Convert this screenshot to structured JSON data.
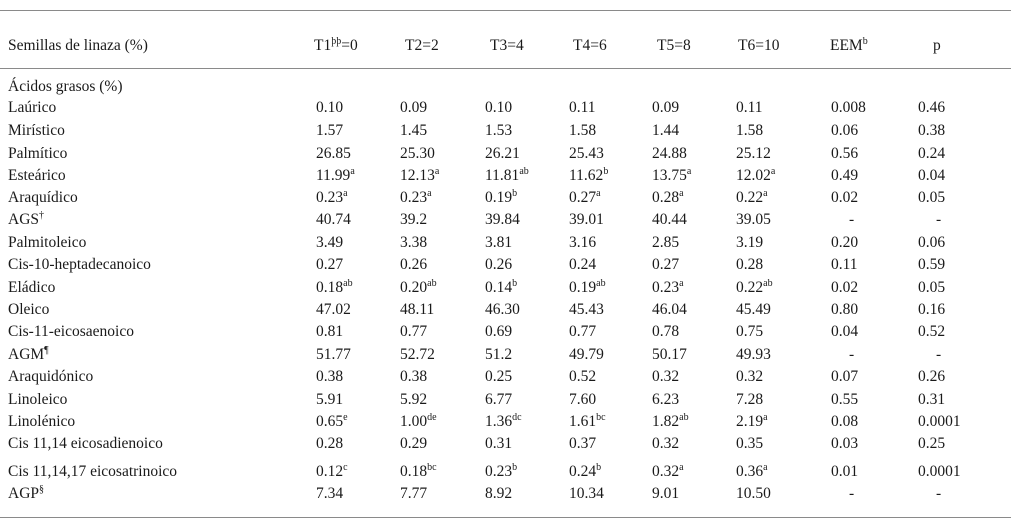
{
  "header": {
    "label": "Semillas de linaza (%)",
    "columns": [
      {
        "text": "T1",
        "sup": "þþ",
        "rest": "=0"
      },
      {
        "text": "T2=2",
        "sup": "",
        "rest": ""
      },
      {
        "text": "T3=4",
        "sup": "",
        "rest": ""
      },
      {
        "text": "T4=6",
        "sup": "",
        "rest": ""
      },
      {
        "text": "T5=8",
        "sup": "",
        "rest": ""
      },
      {
        "text": "T6=10",
        "sup": "",
        "rest": ""
      },
      {
        "text": "EEM",
        "sup": "b",
        "rest": ""
      },
      {
        "text": "p",
        "sup": "",
        "rest": ""
      }
    ]
  },
  "section": "Ácidos grasos (%)",
  "rows": [
    {
      "label": "Laúrico",
      "sup": "",
      "cells": [
        [
          "0.10",
          ""
        ],
        [
          "0.09",
          ""
        ],
        [
          "0.10",
          ""
        ],
        [
          "0.11",
          ""
        ],
        [
          "0.09",
          ""
        ],
        [
          "0.11",
          ""
        ],
        [
          "0.008",
          ""
        ],
        [
          "0.46",
          ""
        ]
      ]
    },
    {
      "label": "Mirístico",
      "sup": "",
      "cells": [
        [
          "1.57",
          ""
        ],
        [
          "1.45",
          ""
        ],
        [
          "1.53",
          ""
        ],
        [
          "1.58",
          ""
        ],
        [
          "1.44",
          ""
        ],
        [
          "1.58",
          ""
        ],
        [
          "0.06",
          ""
        ],
        [
          "0.38",
          ""
        ]
      ]
    },
    {
      "label": "Palmítico",
      "sup": "",
      "cells": [
        [
          "26.85",
          ""
        ],
        [
          "25.30",
          ""
        ],
        [
          "26.21",
          ""
        ],
        [
          "25.43",
          ""
        ],
        [
          "24.88",
          ""
        ],
        [
          "25.12",
          ""
        ],
        [
          "0.56",
          ""
        ],
        [
          "0.24",
          ""
        ]
      ]
    },
    {
      "label": "Esteárico",
      "sup": "",
      "cells": [
        [
          "11.99",
          "a"
        ],
        [
          "12.13",
          "a"
        ],
        [
          "11.81",
          "ab"
        ],
        [
          "11.62",
          "b"
        ],
        [
          "13.75",
          "a"
        ],
        [
          "12.02",
          "a"
        ],
        [
          "0.49",
          ""
        ],
        [
          "0.04",
          ""
        ]
      ]
    },
    {
      "label": "Araquídico",
      "sup": "",
      "cells": [
        [
          "0.23",
          "a"
        ],
        [
          "0.23",
          "a"
        ],
        [
          "0.19",
          "b"
        ],
        [
          "0.27",
          "a"
        ],
        [
          "0.28",
          "a"
        ],
        [
          "0.22",
          "a"
        ],
        [
          "0.02",
          ""
        ],
        [
          "0.05",
          ""
        ]
      ]
    },
    {
      "label": "AGS",
      "sup": "†",
      "cells": [
        [
          "40.74",
          ""
        ],
        [
          "39.2",
          ""
        ],
        [
          "39.84",
          ""
        ],
        [
          "39.01",
          ""
        ],
        [
          "40.44",
          ""
        ],
        [
          "39.05",
          ""
        ],
        [
          "-",
          ""
        ],
        [
          "-",
          ""
        ]
      ]
    },
    {
      "label": "Palmitoleico",
      "sup": "",
      "cells": [
        [
          "3.49",
          ""
        ],
        [
          "3.38",
          ""
        ],
        [
          "3.81",
          ""
        ],
        [
          "3.16",
          ""
        ],
        [
          "2.85",
          ""
        ],
        [
          "3.19",
          ""
        ],
        [
          "0.20",
          ""
        ],
        [
          "0.06",
          ""
        ]
      ]
    },
    {
      "label": "Cis-10-heptadecanoico",
      "sup": "",
      "cells": [
        [
          "0.27",
          ""
        ],
        [
          "0.26",
          ""
        ],
        [
          "0.26",
          ""
        ],
        [
          "0.24",
          ""
        ],
        [
          "0.27",
          ""
        ],
        [
          "0.28",
          ""
        ],
        [
          "0.11",
          ""
        ],
        [
          "0.59",
          ""
        ]
      ]
    },
    {
      "label": "Eládico",
      "sup": "",
      "cells": [
        [
          "0.18",
          "ab"
        ],
        [
          "0.20",
          "ab"
        ],
        [
          "0.14",
          "b"
        ],
        [
          "0.19",
          "ab"
        ],
        [
          "0.23",
          "a"
        ],
        [
          "0.22",
          "ab"
        ],
        [
          "0.02",
          ""
        ],
        [
          "0.05",
          ""
        ]
      ]
    },
    {
      "label": "Oleico",
      "sup": "",
      "cells": [
        [
          "47.02",
          ""
        ],
        [
          "48.11",
          ""
        ],
        [
          "46.30",
          ""
        ],
        [
          "45.43",
          ""
        ],
        [
          "46.04",
          ""
        ],
        [
          "45.49",
          ""
        ],
        [
          "0.80",
          ""
        ],
        [
          "0.16",
          ""
        ]
      ]
    },
    {
      "label": "Cis-11-eicosaenoico",
      "sup": "",
      "cells": [
        [
          "0.81",
          ""
        ],
        [
          "0.77",
          ""
        ],
        [
          "0.69",
          ""
        ],
        [
          "0.77",
          ""
        ],
        [
          "0.78",
          ""
        ],
        [
          "0.75",
          ""
        ],
        [
          "0.04",
          ""
        ],
        [
          "0.52",
          ""
        ]
      ]
    },
    {
      "label": "AGM",
      "sup": "¶",
      "cells": [
        [
          "51.77",
          ""
        ],
        [
          "52.72",
          ""
        ],
        [
          "51.2",
          ""
        ],
        [
          "49.79",
          ""
        ],
        [
          "50.17",
          ""
        ],
        [
          "49.93",
          ""
        ],
        [
          "-",
          ""
        ],
        [
          "-",
          ""
        ]
      ]
    },
    {
      "label": "Araquidónico",
      "sup": "",
      "cells": [
        [
          "0.38",
          ""
        ],
        [
          "0.38",
          ""
        ],
        [
          "0.25",
          ""
        ],
        [
          "0.52",
          ""
        ],
        [
          "0.32",
          ""
        ],
        [
          "0.32",
          ""
        ],
        [
          "0.07",
          ""
        ],
        [
          "0.26",
          ""
        ]
      ]
    },
    {
      "label": "Linoleico",
      "sup": "",
      "cells": [
        [
          "5.91",
          ""
        ],
        [
          "5.92",
          ""
        ],
        [
          "6.77",
          ""
        ],
        [
          "7.60",
          ""
        ],
        [
          "6.23",
          ""
        ],
        [
          "7.28",
          ""
        ],
        [
          "0.55",
          ""
        ],
        [
          "0.31",
          ""
        ]
      ]
    },
    {
      "label": "Linolénico",
      "sup": "",
      "cells": [
        [
          "0.65",
          "e"
        ],
        [
          "1.00",
          "de"
        ],
        [
          "1.36",
          "dc"
        ],
        [
          "1.61",
          "bc"
        ],
        [
          "1.82",
          "ab"
        ],
        [
          "2.19",
          "a"
        ],
        [
          "0.08",
          ""
        ],
        [
          "0.0001",
          ""
        ]
      ]
    },
    {
      "label": "Cis 11,14 eicosadienoico",
      "sup": "",
      "cells": [
        [
          "0.28",
          ""
        ],
        [
          "0.29",
          ""
        ],
        [
          "0.31",
          ""
        ],
        [
          "0.37",
          ""
        ],
        [
          "0.32",
          ""
        ],
        [
          "0.35",
          ""
        ],
        [
          "0.03",
          ""
        ],
        [
          "0.25",
          ""
        ]
      ]
    },
    {
      "label": "Cis 11,14,17 eicosatrinoico",
      "sup": "",
      "cells": [
        [
          "0.12",
          "c"
        ],
        [
          "0.18",
          "bc"
        ],
        [
          "0.23",
          "b"
        ],
        [
          "0.24",
          "b"
        ],
        [
          "0.32",
          "a"
        ],
        [
          "0.36",
          "a"
        ],
        [
          "0.01",
          ""
        ],
        [
          "0.0001",
          ""
        ]
      ]
    },
    {
      "label": "AGP",
      "sup": "§",
      "cells": [
        [
          "7.34",
          ""
        ],
        [
          "7.77",
          ""
        ],
        [
          "8.92",
          ""
        ],
        [
          "10.34",
          ""
        ],
        [
          "9.01",
          ""
        ],
        [
          "10.50",
          ""
        ],
        [
          "-",
          ""
        ],
        [
          "-",
          ""
        ]
      ]
    }
  ]
}
